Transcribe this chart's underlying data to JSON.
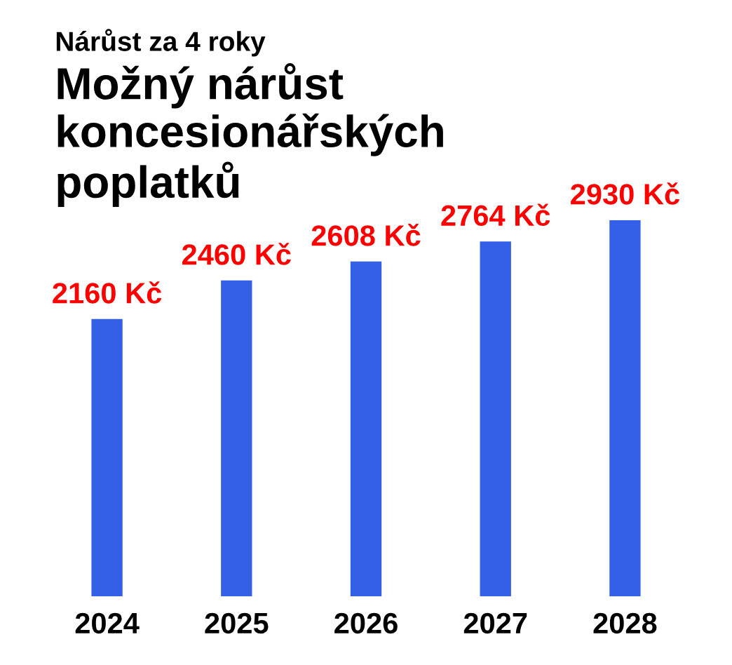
{
  "chart_data": {
    "type": "bar",
    "subtitle": "Nárůst za 4 roky",
    "title": "Možný nárůst\nkoncesionářských\npoplatků",
    "categories": [
      "2024",
      "2025",
      "2026",
      "2027",
      "2028"
    ],
    "values": [
      2160,
      2460,
      2608,
      2764,
      2930
    ],
    "value_labels": [
      "2160 Kč",
      "2460 Kč",
      "2608 Kč",
      "2764 Kč",
      "2930 Kč"
    ],
    "color": "#3460e8",
    "tick_labels": "x",
    "grid": false,
    "legend": false
  }
}
